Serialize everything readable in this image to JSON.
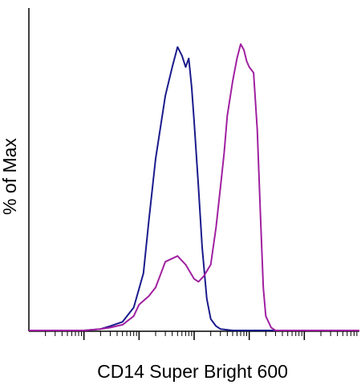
{
  "chart_data": {
    "type": "line",
    "title": "",
    "xlabel": "CD14 Super Bright 600",
    "ylabel": "% of Max",
    "x_scale": "log",
    "xlim": [
      1,
      1000000
    ],
    "ylim": [
      0,
      100
    ],
    "major_ticks": [
      10,
      100,
      1000,
      10000,
      100000,
      1000000
    ],
    "grid": false,
    "legend": "none",
    "series": [
      {
        "color": "#1a1a8c",
        "x": [
          1,
          10,
          20,
          30,
          50,
          80,
          120,
          150,
          200,
          300,
          400,
          500,
          600,
          700,
          800,
          900,
          1000,
          1200,
          1400,
          1700,
          2000,
          2500,
          3000,
          5000,
          10000,
          1000000
        ],
        "y": [
          0,
          0,
          0.5,
          1.5,
          3,
          8,
          20,
          38,
          60,
          82,
          92,
          99,
          96,
          92,
          95,
          85,
          73,
          50,
          29,
          11,
          4,
          1.5,
          0.5,
          0,
          0,
          0
        ]
      },
      {
        "color": "#a020a0",
        "x": [
          1,
          10,
          20,
          30,
          50,
          80,
          100,
          150,
          200,
          300,
          500,
          700,
          1000,
          1200,
          1500,
          2000,
          2500,
          3000,
          3500,
          4000,
          5000,
          6000,
          7000,
          8000,
          9000,
          10000,
          12000,
          14000,
          16000,
          18000,
          20000,
          25000,
          30000,
          40000,
          1000000
        ],
        "y": [
          0,
          0,
          0.5,
          1,
          2,
          5,
          9,
          12,
          15,
          24,
          26,
          23,
          18,
          17,
          19,
          23,
          36,
          50,
          62,
          75,
          87,
          95,
          100,
          98,
          94,
          92,
          90,
          70,
          40,
          15,
          5,
          1,
          0,
          0,
          0
        ]
      }
    ]
  }
}
